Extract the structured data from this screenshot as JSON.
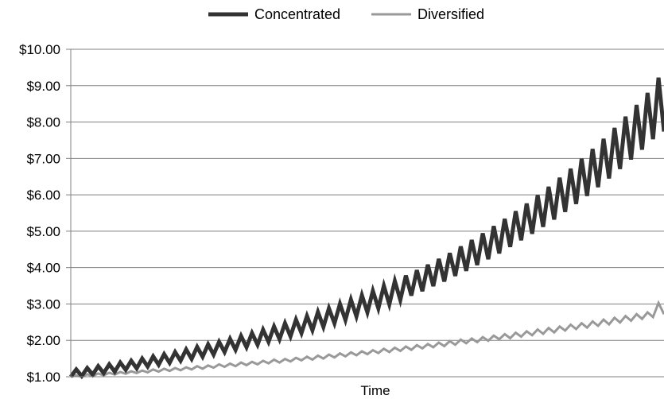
{
  "chart_data": {
    "type": "line",
    "title": "",
    "xlabel": "Time",
    "ylabel": "",
    "ylim": [
      1,
      10
    ],
    "yticks": [
      "$1.00",
      "$2.00",
      "$3.00",
      "$4.00",
      "$5.00",
      "$6.00",
      "$7.00",
      "$8.00",
      "$9.00",
      "$10.00"
    ],
    "grid": true,
    "legend_position": "top-center",
    "series": [
      {
        "name": "Concentrated",
        "color": "#333333",
        "values": [
          1.0,
          1.2,
          1.02,
          1.24,
          1.06,
          1.29,
          1.1,
          1.34,
          1.14,
          1.39,
          1.19,
          1.44,
          1.23,
          1.5,
          1.28,
          1.56,
          1.33,
          1.62,
          1.38,
          1.68,
          1.44,
          1.75,
          1.49,
          1.82,
          1.55,
          1.89,
          1.61,
          1.96,
          1.68,
          2.04,
          1.74,
          2.12,
          1.81,
          2.2,
          1.88,
          2.29,
          1.96,
          2.38,
          2.03,
          2.47,
          2.11,
          2.57,
          2.2,
          2.67,
          2.28,
          2.78,
          2.37,
          2.88,
          2.47,
          3.0,
          2.56,
          3.12,
          2.66,
          3.24,
          2.77,
          3.36,
          2.88,
          3.5,
          2.99,
          3.63,
          3.11,
          3.78,
          3.23,
          3.93,
          3.35,
          4.08,
          3.49,
          4.24,
          3.62,
          4.4,
          3.77,
          4.58,
          3.91,
          4.76,
          4.07,
          4.94,
          4.23,
          5.14,
          4.39,
          5.34,
          4.57,
          5.55,
          4.75,
          5.76,
          4.93,
          5.99,
          5.12,
          6.22,
          5.32,
          6.47,
          5.53,
          6.72,
          5.75,
          6.99,
          5.97,
          7.26,
          6.21,
          7.54,
          6.45,
          7.84,
          6.71,
          8.15,
          6.97,
          8.47,
          7.24,
          8.8,
          7.53,
          9.22,
          7.74
        ]
      },
      {
        "name": "Diversified",
        "color": "#999999",
        "values": [
          1.0,
          1.04,
          1.0,
          1.07,
          1.02,
          1.09,
          1.04,
          1.11,
          1.06,
          1.13,
          1.08,
          1.15,
          1.1,
          1.17,
          1.12,
          1.2,
          1.14,
          1.22,
          1.16,
          1.24,
          1.18,
          1.26,
          1.2,
          1.29,
          1.22,
          1.31,
          1.25,
          1.34,
          1.27,
          1.36,
          1.29,
          1.39,
          1.32,
          1.41,
          1.34,
          1.44,
          1.37,
          1.47,
          1.39,
          1.49,
          1.42,
          1.52,
          1.45,
          1.55,
          1.47,
          1.58,
          1.5,
          1.61,
          1.53,
          1.64,
          1.56,
          1.67,
          1.59,
          1.7,
          1.62,
          1.73,
          1.65,
          1.77,
          1.68,
          1.8,
          1.71,
          1.83,
          1.74,
          1.87,
          1.78,
          1.9,
          1.81,
          1.94,
          1.84,
          1.98,
          1.88,
          2.02,
          1.92,
          2.05,
          1.95,
          2.09,
          1.99,
          2.13,
          2.03,
          2.17,
          2.06,
          2.21,
          2.1,
          2.25,
          2.14,
          2.3,
          2.18,
          2.34,
          2.22,
          2.38,
          2.27,
          2.43,
          2.31,
          2.47,
          2.35,
          2.52,
          2.4,
          2.57,
          2.44,
          2.62,
          2.49,
          2.67,
          2.54,
          2.72,
          2.59,
          2.77,
          2.64,
          3.03,
          2.72
        ]
      }
    ]
  }
}
